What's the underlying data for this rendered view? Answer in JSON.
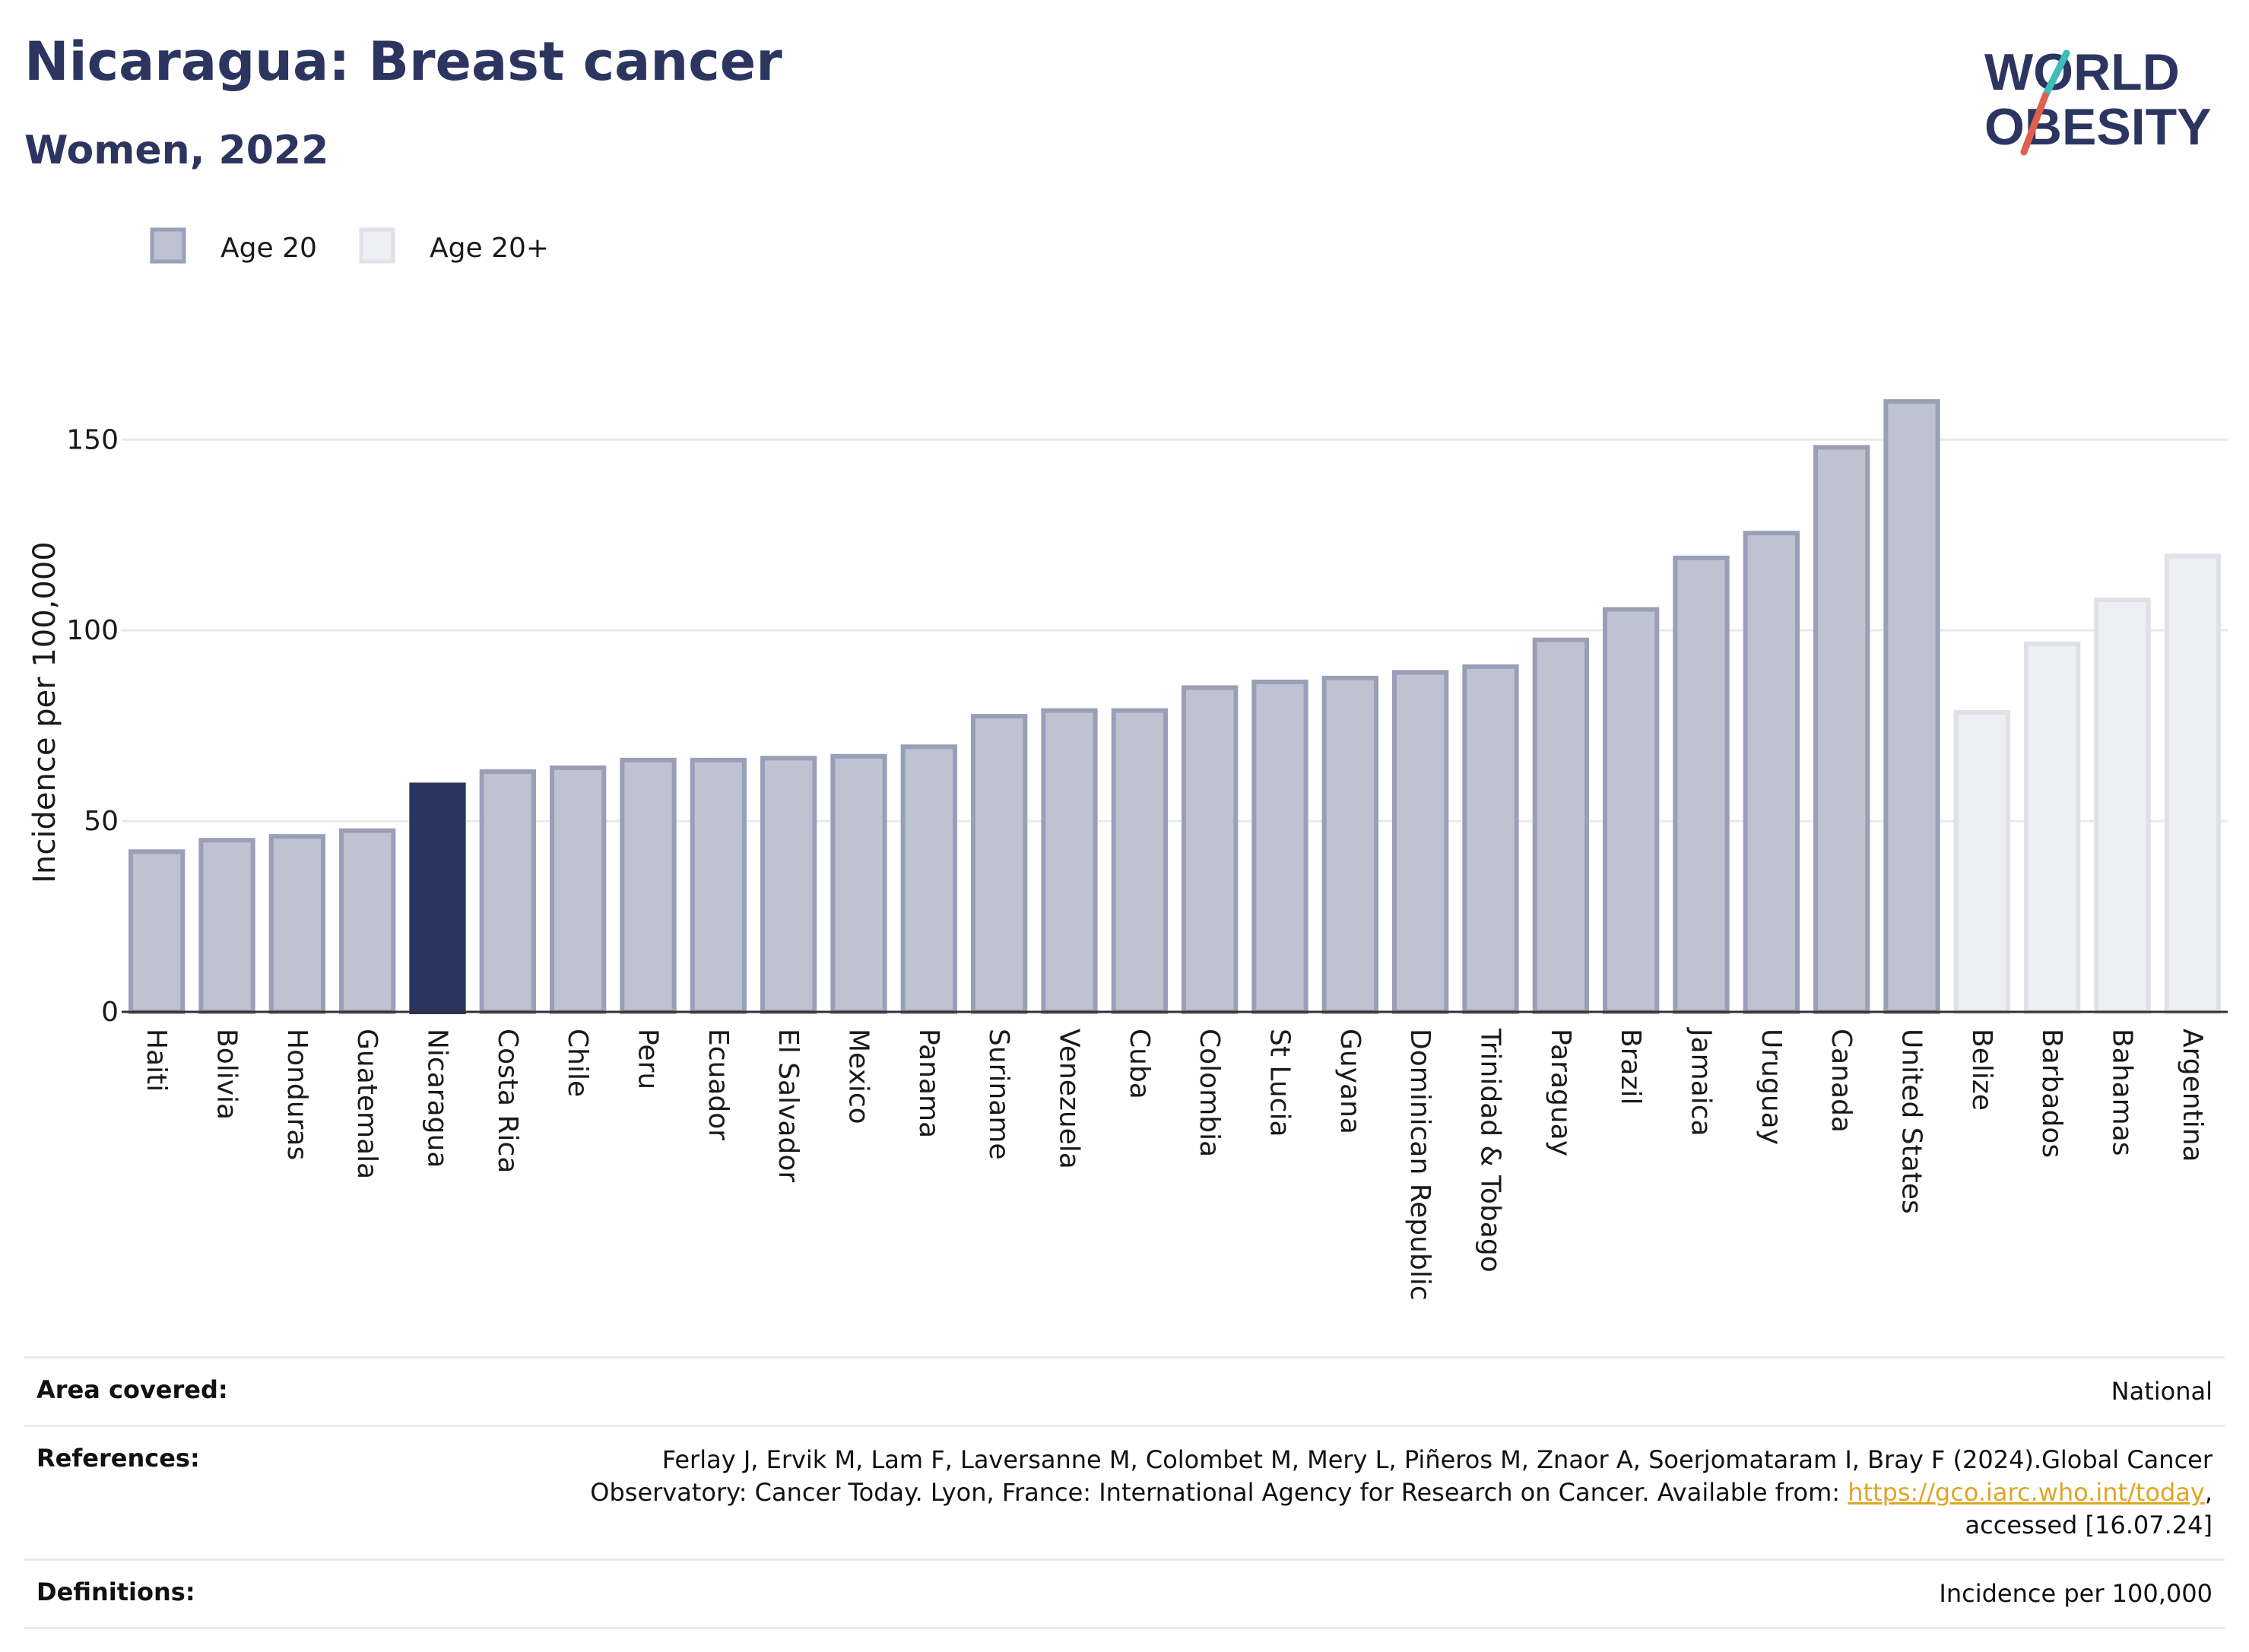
{
  "header": {
    "title": "Nicaragua: Breast cancer",
    "subtitle": "Women, 2022"
  },
  "logo": {
    "line1": "WORLD",
    "line2": "OBESITY",
    "accent_colors": [
      "#3dbdb5",
      "#e1604d"
    ]
  },
  "colors": {
    "highlight": "#2c3560",
    "age20": "#bfc2d0",
    "age20_border": "#9a9fb8",
    "age20plus": "#eeeff3",
    "age20plus_border": "#e0e1e8"
  },
  "chart_data": {
    "type": "bar",
    "ylabel": "Incidence per 100,000",
    "ylim": [
      0,
      165
    ],
    "yticks": [
      0,
      50,
      100,
      150
    ],
    "legend": [
      {
        "name": "Age 20",
        "color": "#bfc2d0"
      },
      {
        "name": "Age 20+",
        "color": "#eeeff3"
      }
    ],
    "highlight": "Nicaragua",
    "grid": true,
    "bars": [
      {
        "category": "Haiti",
        "value": 42,
        "group": "Age 20"
      },
      {
        "category": "Bolivia",
        "value": 45,
        "group": "Age 20"
      },
      {
        "category": "Honduras",
        "value": 46,
        "group": "Age 20"
      },
      {
        "category": "Guatemala",
        "value": 47.5,
        "group": "Age 20"
      },
      {
        "category": "Nicaragua",
        "value": 59.5,
        "group": "Age 20"
      },
      {
        "category": "Costa Rica",
        "value": 63,
        "group": "Age 20"
      },
      {
        "category": "Chile",
        "value": 64,
        "group": "Age 20"
      },
      {
        "category": "Peru",
        "value": 66,
        "group": "Age 20"
      },
      {
        "category": "Ecuador",
        "value": 66,
        "group": "Age 20"
      },
      {
        "category": "El Salvador",
        "value": 66.5,
        "group": "Age 20"
      },
      {
        "category": "Mexico",
        "value": 67,
        "group": "Age 20"
      },
      {
        "category": "Panama",
        "value": 69.5,
        "group": "Age 20"
      },
      {
        "category": "Suriname",
        "value": 77.5,
        "group": "Age 20"
      },
      {
        "category": "Venezuela",
        "value": 79,
        "group": "Age 20"
      },
      {
        "category": "Cuba",
        "value": 79,
        "group": "Age 20"
      },
      {
        "category": "Colombia",
        "value": 85,
        "group": "Age 20"
      },
      {
        "category": "St Lucia",
        "value": 86.5,
        "group": "Age 20"
      },
      {
        "category": "Guyana",
        "value": 87.5,
        "group": "Age 20"
      },
      {
        "category": "Dominican Republic",
        "value": 89,
        "group": "Age 20"
      },
      {
        "category": "Trinidad & Tobago",
        "value": 90.5,
        "group": "Age 20"
      },
      {
        "category": "Paraguay",
        "value": 97.5,
        "group": "Age 20"
      },
      {
        "category": "Brazil",
        "value": 105.5,
        "group": "Age 20"
      },
      {
        "category": "Jamaica",
        "value": 119,
        "group": "Age 20"
      },
      {
        "category": "Uruguay",
        "value": 125.5,
        "group": "Age 20"
      },
      {
        "category": "Canada",
        "value": 148,
        "group": "Age 20"
      },
      {
        "category": "United States",
        "value": 160,
        "group": "Age 20"
      },
      {
        "category": "Belize",
        "value": 78.5,
        "group": "Age 20+"
      },
      {
        "category": "Barbados",
        "value": 96.5,
        "group": "Age 20+"
      },
      {
        "category": "Bahamas",
        "value": 108,
        "group": "Age 20+"
      },
      {
        "category": "Argentina",
        "value": 119.5,
        "group": "Age 20+"
      }
    ]
  },
  "meta": {
    "area_label": "Area covered:",
    "area_value": "National",
    "references_label": "References:",
    "references_text_1": "Ferlay J, Ervik M, Lam F, Laversanne M, Colombet M, Mery L, Piñeros M, Znaor A, Soerjomataram I, Bray F (2024).Global Cancer",
    "references_text_2": "Observatory: Cancer Today. Lyon, France: International Agency for Research on Cancer. Available from: ",
    "references_link": "https://gco.iarc.who.int/today",
    "references_text_3": ",",
    "references_text_4": "accessed [16.07.24]",
    "definitions_label": "Definitions:",
    "definitions_value": "Incidence per 100,000"
  }
}
